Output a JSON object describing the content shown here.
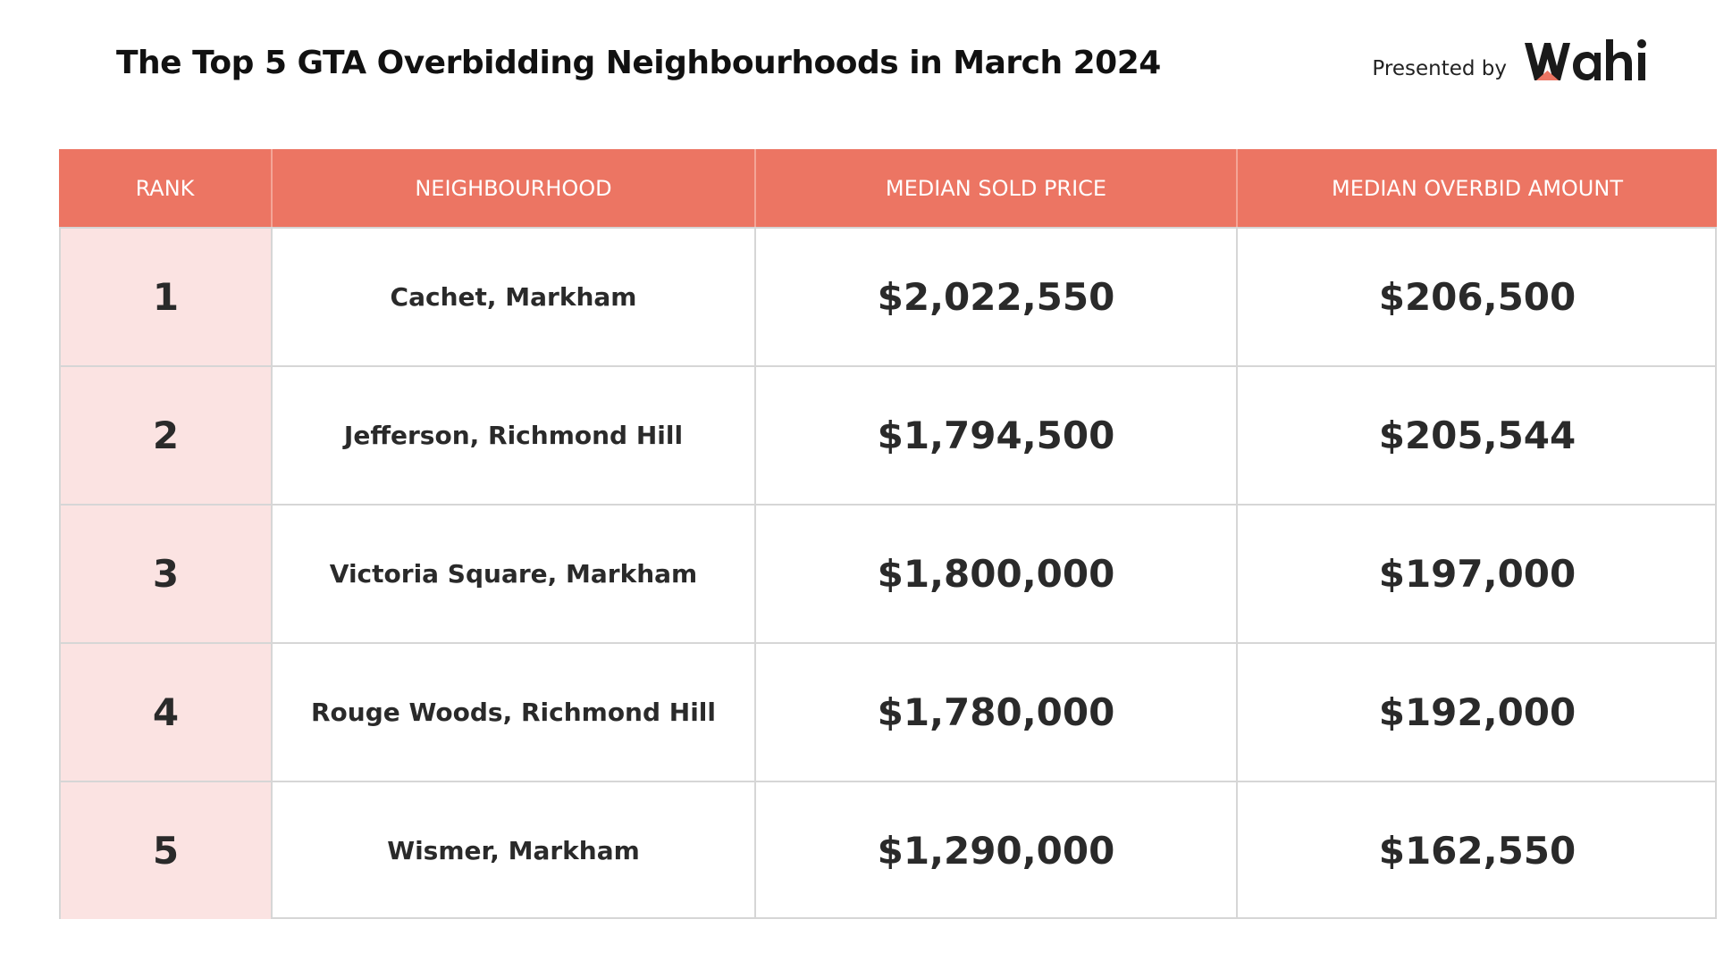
{
  "header": {
    "title": "The Top 5 GTA Overbidding Neighbourhoods in March 2024",
    "presented_by": "Presented by",
    "brand_logo_text": "Wahi",
    "brand_color": "#1a1a1a",
    "brand_accent": "#ec7563"
  },
  "colors": {
    "header_bg": "#ec7563",
    "rank_bg": "#fbe3e2",
    "grid_line": "#d6d6d6"
  },
  "chart_data": {
    "type": "table",
    "title": "The Top 5 GTA Overbidding Neighbourhoods in March 2024",
    "columns": [
      "RANK",
      "NEIGHBOURHOOD",
      "MEDIAN SOLD PRICE",
      "MEDIAN OVERBID AMOUNT"
    ],
    "rows": [
      [
        "1",
        "Cachet, Markham",
        "$2,022,550",
        "$206,500"
      ],
      [
        "2",
        "Jefferson, Richmond Hill",
        "$1,794,500",
        "$205,544"
      ],
      [
        "3",
        "Victoria Square, Markham",
        "$1,800,000",
        "$197,000"
      ],
      [
        "4",
        "Rouge Woods, Richmond Hill",
        "$1,780,000",
        "$192,000"
      ],
      [
        "5",
        "Wismer, Markham",
        "$1,290,000",
        "$162,550"
      ]
    ]
  }
}
